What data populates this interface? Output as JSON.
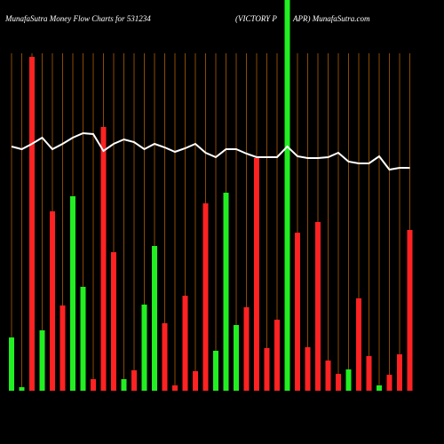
{
  "chart_data": {
    "type": "bar",
    "title": "MunafaSutra  Money Flow  Charts for 531234",
    "subtitle": "(VICTORY P",
    "title_right": "APR) MunafaSutra.com",
    "categories": [
      null,
      null,
      null,
      null,
      null,
      null,
      null,
      null,
      null,
      null,
      null,
      null,
      null,
      null,
      null,
      null,
      null,
      null,
      null,
      null,
      null,
      null,
      null,
      null,
      null,
      null,
      null,
      null,
      null,
      null,
      null,
      null,
      null,
      null,
      null,
      null,
      null,
      null,
      null,
      null
    ],
    "values": [
      60,
      4,
      376,
      68,
      202,
      96,
      219,
      117,
      13,
      297,
      156,
      13,
      23,
      97,
      163,
      76,
      6,
      107,
      22,
      211,
      45,
      223,
      74,
      94,
      262,
      48,
      80,
      440,
      178,
      49,
      190,
      34,
      19,
      24,
      104,
      39,
      6,
      18,
      41,
      181
    ],
    "colors": [
      "#22ee22",
      "#22ee22",
      "#ff2222",
      "#22ee22",
      "#ff2222",
      "#ff2222",
      "#22ee22",
      "#22ee22",
      "#ff2222",
      "#ff2222",
      "#ff2222",
      "#22ee22",
      "#ff2222",
      "#22ee22",
      "#22ee22",
      "#ff2222",
      "#ff2222",
      "#ff2222",
      "#ff2222",
      "#ff2222",
      "#22ee22",
      "#22ee22",
      "#22ee22",
      "#ff2222",
      "#ff2222",
      "#ff2222",
      "#ff2222",
      "#22ee22",
      "#ff2222",
      "#ff2222",
      "#ff2222",
      "#ff2222",
      "#ff2222",
      "#22ee22",
      "#ff2222",
      "#ff2222",
      "#22ee22",
      "#ff2222",
      "#ff2222",
      "#ff2222"
    ],
    "line": {
      "color": "#ffffff",
      "values": [
        275,
        272,
        278,
        285,
        272,
        278,
        285,
        290,
        289,
        270,
        278,
        283,
        280,
        272,
        278,
        274,
        269,
        273,
        278,
        268,
        263,
        272,
        272,
        267,
        263,
        263,
        263,
        275,
        264,
        262,
        262,
        263,
        268,
        258,
        256,
        256,
        264,
        249,
        251,
        251
      ]
    },
    "ylim": [
      0,
      440
    ],
    "grid": true,
    "grid_color": "#8b4a00"
  }
}
